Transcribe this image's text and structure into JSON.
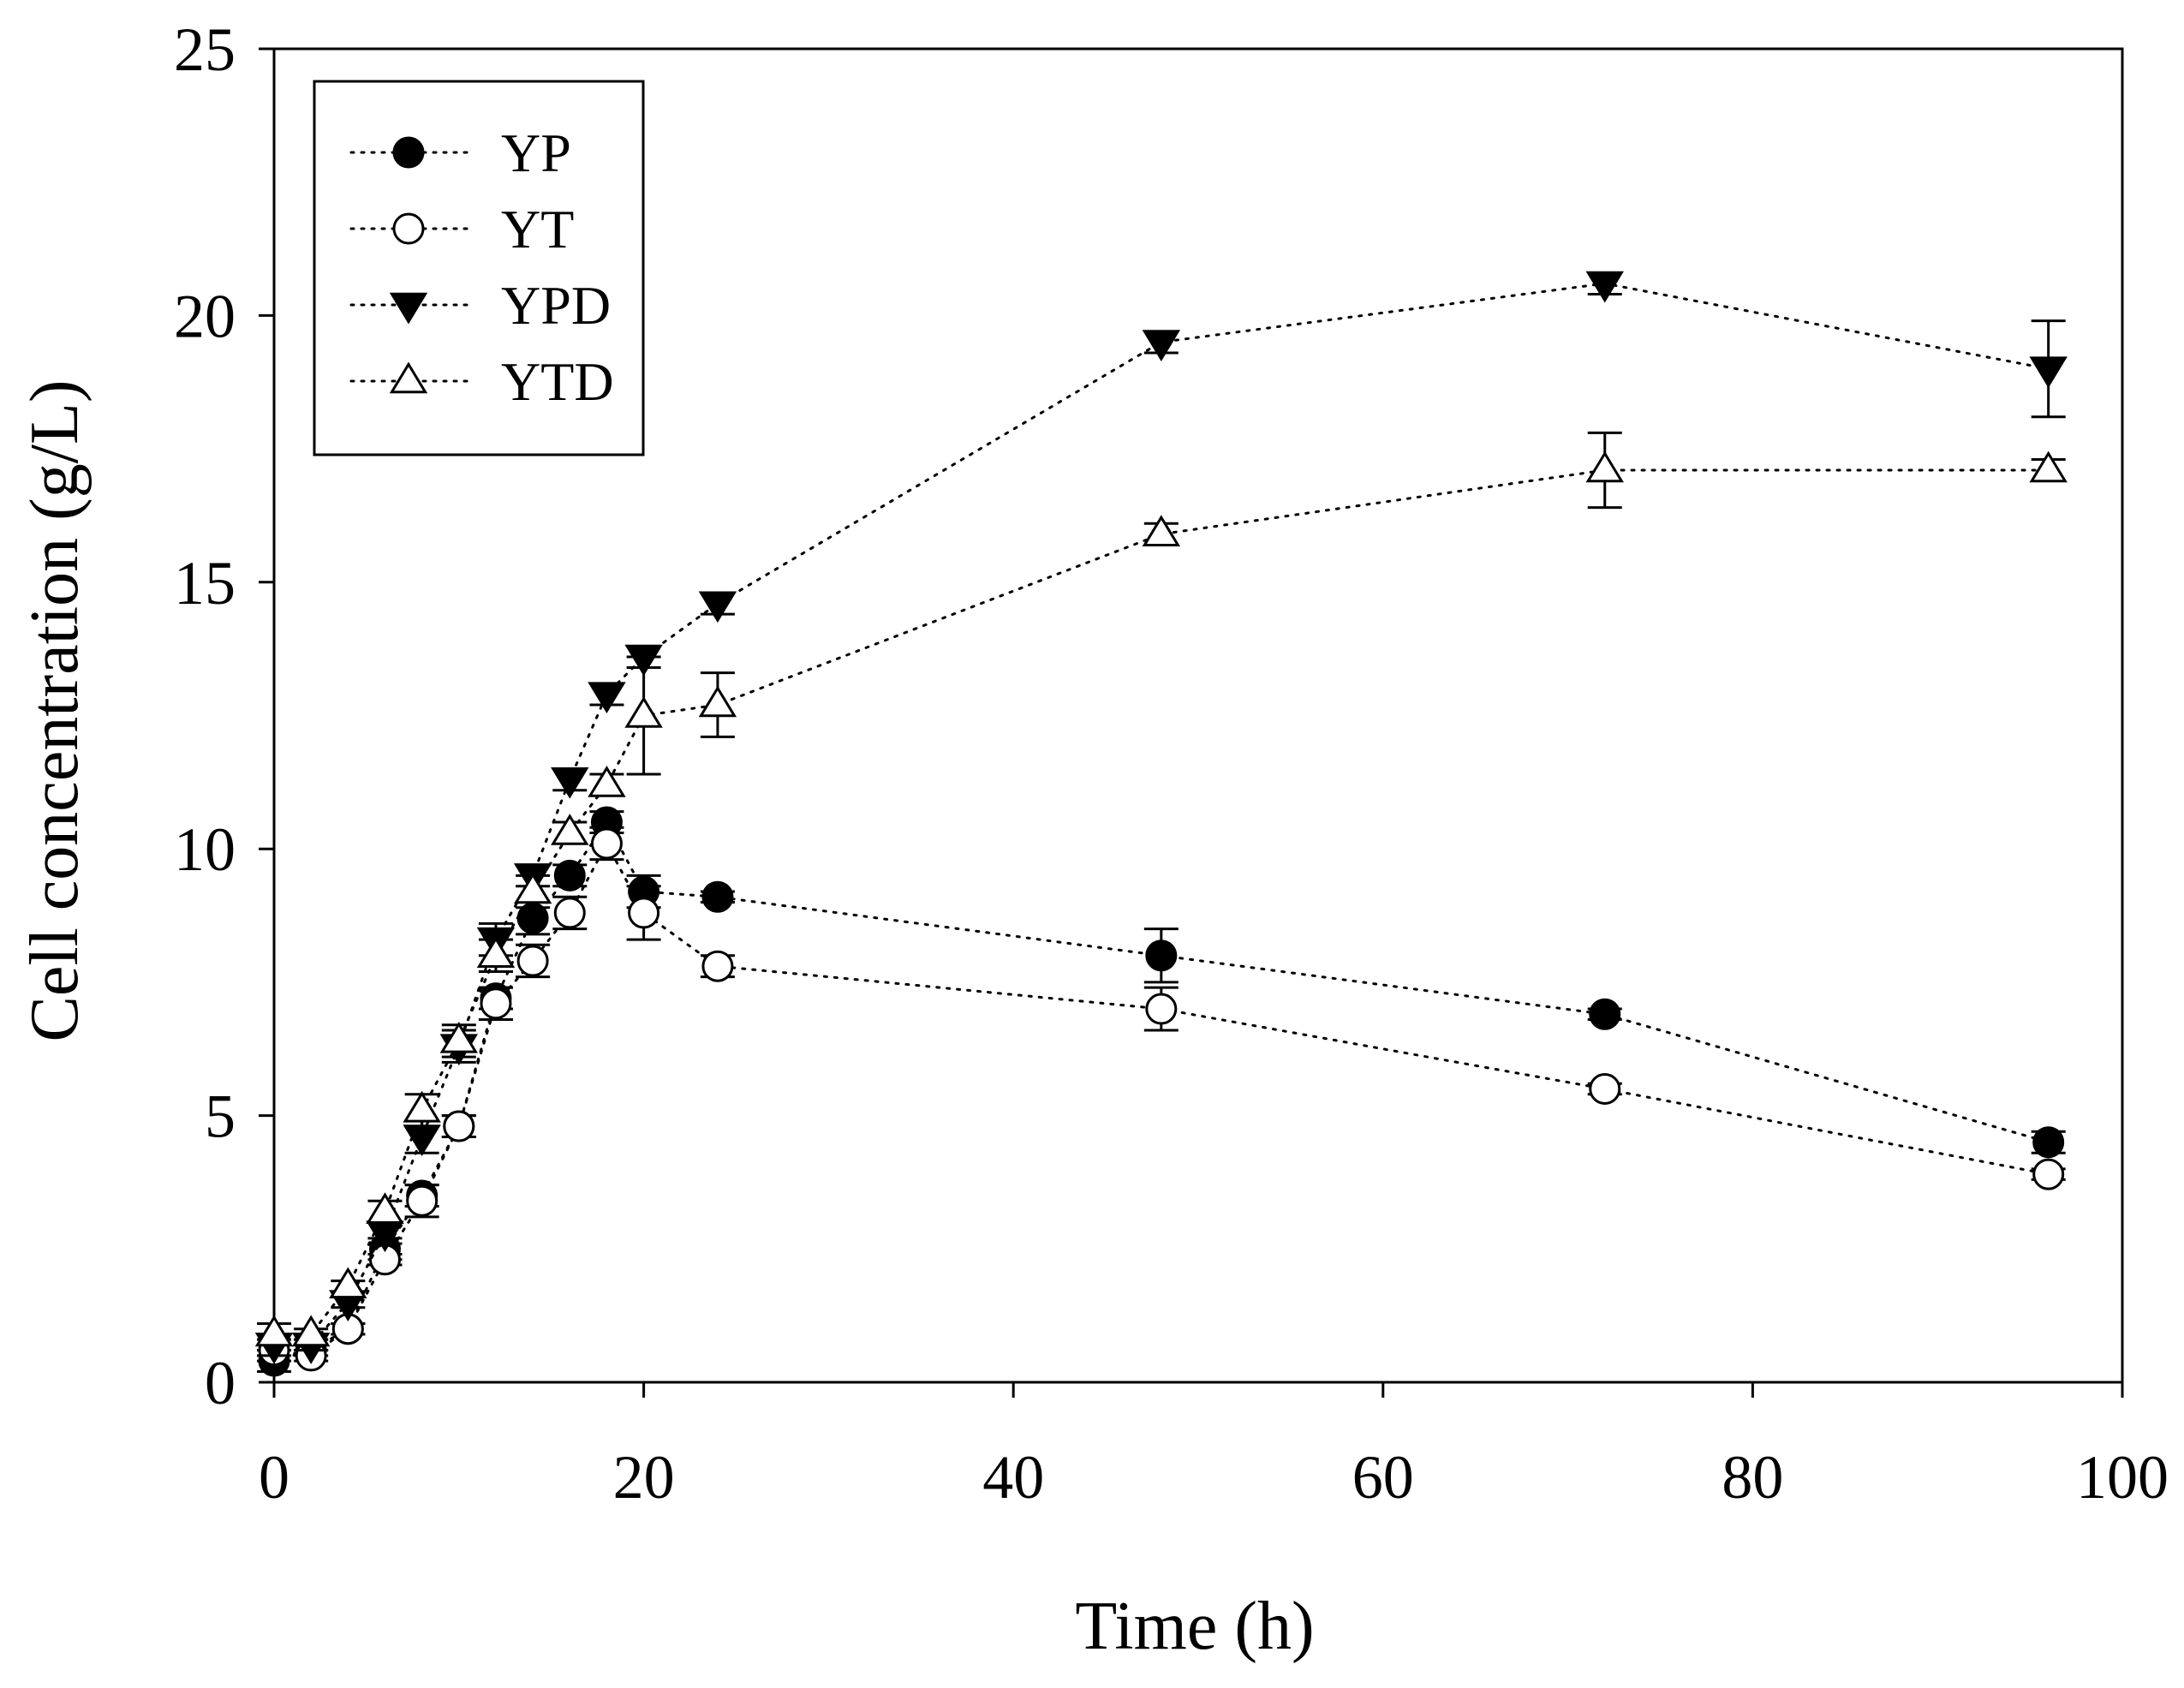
{
  "chart_data": {
    "type": "scatter",
    "xlabel": "Time (h)",
    "ylabel": "Cell concentration (g/L)",
    "xlim": [
      0,
      100
    ],
    "ylim": [
      0,
      25
    ],
    "xticks": [
      "0",
      "20",
      "40",
      "60",
      "80",
      "100"
    ],
    "yticks": [
      "0",
      "5",
      "10",
      "15",
      "20",
      "25"
    ],
    "grid": false,
    "legend_position": "top-left",
    "line_style": "dotted",
    "series": [
      {
        "name": "YP",
        "marker": "filled-circle",
        "points": [
          {
            "x": 0,
            "y": 0.4,
            "err": 0.2
          },
          {
            "x": 2,
            "y": 0.6,
            "err": 0.1
          },
          {
            "x": 4,
            "y": 1.0,
            "err": 0.1
          },
          {
            "x": 6,
            "y": 2.5,
            "err": 0.2
          },
          {
            "x": 8,
            "y": 3.5,
            "err": 0.2
          },
          {
            "x": 10,
            "y": 4.8,
            "err": 0.2
          },
          {
            "x": 12,
            "y": 7.2,
            "err": 0.2
          },
          {
            "x": 14,
            "y": 8.7,
            "err": 0.3
          },
          {
            "x": 16,
            "y": 9.5,
            "err": 0.2
          },
          {
            "x": 18,
            "y": 10.5,
            "err": 0.2
          },
          {
            "x": 20,
            "y": 9.2,
            "err": 0.3
          },
          {
            "x": 24,
            "y": 9.1,
            "err": 0.1
          },
          {
            "x": 48,
            "y": 8.0,
            "err": 0.5
          },
          {
            "x": 72,
            "y": 6.9,
            "err": 0.1
          },
          {
            "x": 96,
            "y": 4.5,
            "err": 0.2
          }
        ]
      },
      {
        "name": "YT",
        "marker": "open-circle",
        "points": [
          {
            "x": 0,
            "y": 0.6,
            "err": 0.2
          },
          {
            "x": 2,
            "y": 0.5,
            "err": 0.1
          },
          {
            "x": 4,
            "y": 1.0,
            "err": 0.1
          },
          {
            "x": 6,
            "y": 2.3,
            "err": 0.1
          },
          {
            "x": 8,
            "y": 3.4,
            "err": 0.3
          },
          {
            "x": 10,
            "y": 4.8,
            "err": 0.2
          },
          {
            "x": 12,
            "y": 7.1,
            "err": 0.3
          },
          {
            "x": 14,
            "y": 7.9,
            "err": 0.3
          },
          {
            "x": 16,
            "y": 8.8,
            "err": 0.3
          },
          {
            "x": 18,
            "y": 10.1,
            "err": 0.3
          },
          {
            "x": 20,
            "y": 8.8,
            "err": 0.5
          },
          {
            "x": 24,
            "y": 7.8,
            "err": 0.2
          },
          {
            "x": 48,
            "y": 7.0,
            "err": 0.4
          },
          {
            "x": 72,
            "y": 5.5,
            "err": 0.1
          },
          {
            "x": 96,
            "y": 3.9,
            "err": 0.1
          }
        ]
      },
      {
        "name": "YPD",
        "marker": "filled-triangle-down",
        "points": [
          {
            "x": 0,
            "y": 0.7,
            "err": 0.2
          },
          {
            "x": 2,
            "y": 0.7,
            "err": 0.1
          },
          {
            "x": 4,
            "y": 1.5,
            "err": 0.1
          },
          {
            "x": 6,
            "y": 2.8,
            "err": 0.2
          },
          {
            "x": 8,
            "y": 4.6,
            "err": 0.3
          },
          {
            "x": 10,
            "y": 6.3,
            "err": 0.3
          },
          {
            "x": 12,
            "y": 8.3,
            "err": 0.3
          },
          {
            "x": 14,
            "y": 9.5,
            "err": 0.2
          },
          {
            "x": 16,
            "y": 11.3,
            "err": 0.2
          },
          {
            "x": 18,
            "y": 12.9,
            "err": 0.2
          },
          {
            "x": 20,
            "y": 13.6,
            "err": 0.2
          },
          {
            "x": 24,
            "y": 14.6,
            "err": 0.2
          },
          {
            "x": 48,
            "y": 19.5,
            "err": 0.2
          },
          {
            "x": 72,
            "y": 20.6,
            "err": 0.2
          },
          {
            "x": 96,
            "y": 19.0,
            "err": 0.9
          }
        ]
      },
      {
        "name": "YTD",
        "marker": "open-triangle-up",
        "points": [
          {
            "x": 0,
            "y": 0.9,
            "err": 0.2
          },
          {
            "x": 2,
            "y": 0.9,
            "err": 0.1
          },
          {
            "x": 4,
            "y": 1.8,
            "err": 0.1
          },
          {
            "x": 6,
            "y": 3.2,
            "err": 0.2
          },
          {
            "x": 8,
            "y": 5.1,
            "err": 0.3
          },
          {
            "x": 10,
            "y": 6.4,
            "err": 0.3
          },
          {
            "x": 12,
            "y": 8.0,
            "err": 0.3
          },
          {
            "x": 14,
            "y": 9.2,
            "err": 0.3
          },
          {
            "x": 16,
            "y": 10.3,
            "err": 0.2
          },
          {
            "x": 18,
            "y": 11.2,
            "err": 0.2
          },
          {
            "x": 20,
            "y": 12.5,
            "err": 1.1
          },
          {
            "x": 24,
            "y": 12.7,
            "err": 0.6
          },
          {
            "x": 48,
            "y": 15.9,
            "err": 0.2
          },
          {
            "x": 72,
            "y": 17.1,
            "err": 0.7
          },
          {
            "x": 96,
            "y": 17.1,
            "err": 0.2
          }
        ]
      }
    ]
  }
}
